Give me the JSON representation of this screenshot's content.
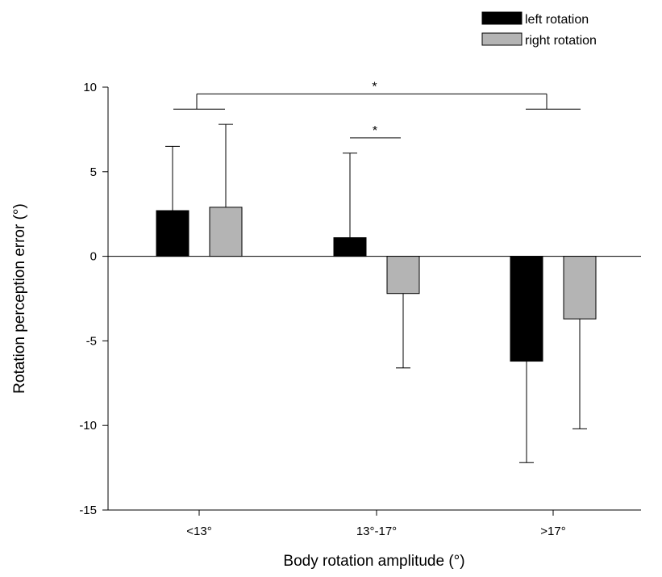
{
  "chart_data": {
    "type": "bar",
    "title": "",
    "xlabel": "Body rotation amplitude (°)",
    "ylabel": "Rotation perception error (°)",
    "categories": [
      "<13°",
      "13°-17°",
      ">17°"
    ],
    "ylim": [
      -15,
      10
    ],
    "yticks": [
      -15,
      -10,
      -5,
      0,
      5,
      10
    ],
    "series": [
      {
        "name": "left rotation",
        "color": "#000000",
        "values": [
          2.7,
          1.1,
          -6.2
        ],
        "errors": [
          3.8,
          5.0,
          6.0
        ]
      },
      {
        "name": "right rotation",
        "color": "#b4b4b4",
        "values": [
          2.9,
          -2.2,
          -3.7
        ],
        "errors": [
          4.9,
          4.4,
          6.5
        ]
      }
    ],
    "legend_position": "top-right",
    "significance": [
      {
        "label": "*",
        "between": [
          "<13°",
          ">17°"
        ]
      },
      {
        "label": "*",
        "between": [
          "13°-17° left rotation",
          "13°-17° right rotation"
        ]
      }
    ]
  }
}
